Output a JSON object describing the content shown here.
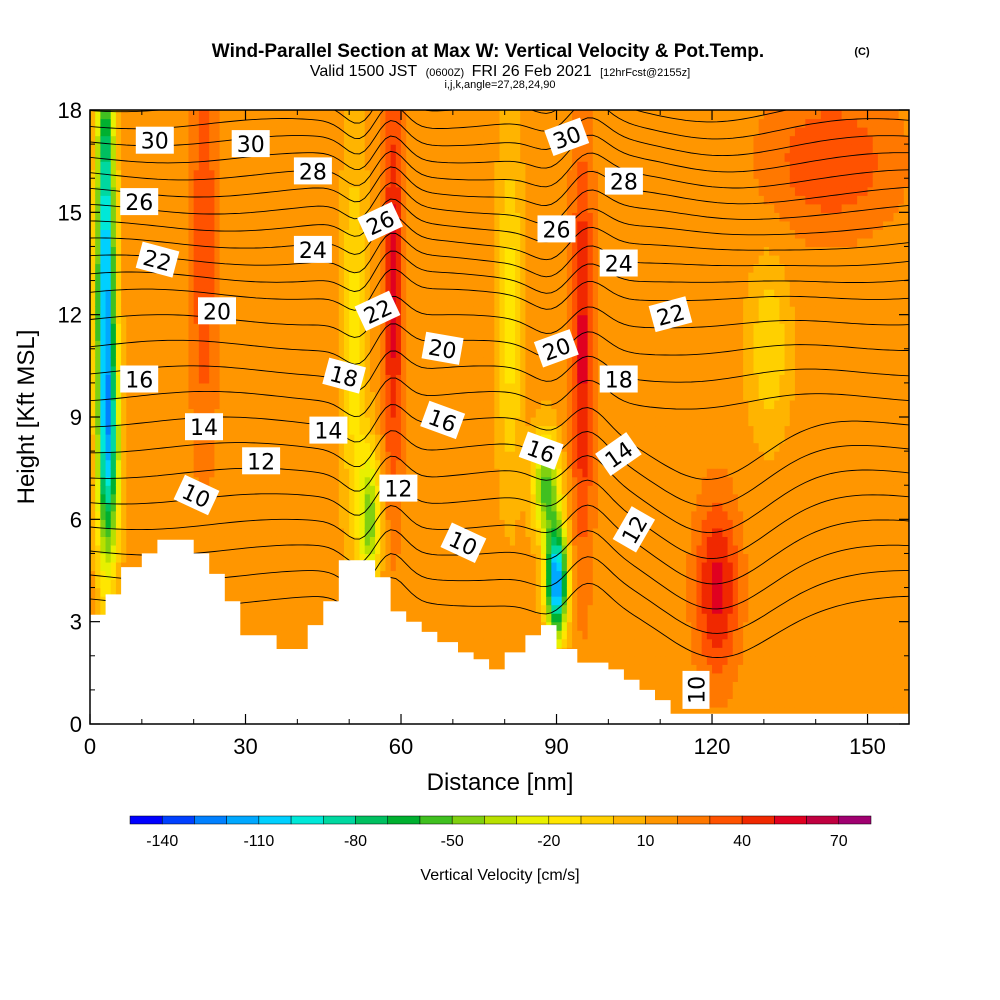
{
  "header": {
    "title": "Wind-Parallel Section at Max W: Vertical Velocity & Pot.Temp.",
    "title_mark": "(C)",
    "valid_prefix": "Valid 1500 JST",
    "valid_utc": "(0600Z)",
    "valid_date": "FRI 26 Feb 2021",
    "valid_fcst": "[12hrFcst@2155z]",
    "indices": "i,j,k,angle=27,28,24,90"
  },
  "chart_data": {
    "type": "heatmap",
    "xlabel": "Distance [nm]",
    "ylabel": "Height [Kft MSL]",
    "xlim": [
      0,
      158
    ],
    "ylim": [
      0,
      18
    ],
    "x_ticks": [
      "0",
      "30",
      "60",
      "90",
      "120",
      "150"
    ],
    "x_tick_values": [
      0,
      30,
      60,
      90,
      120,
      150
    ],
    "y_ticks": [
      "0",
      "3",
      "6",
      "9",
      "12",
      "15",
      "18"
    ],
    "y_tick_values": [
      0,
      3,
      6,
      9,
      12,
      15,
      18
    ],
    "terrain": {
      "x": [
        0,
        3,
        3,
        6,
        6,
        10,
        10,
        13,
        13,
        20,
        20,
        23,
        23,
        26,
        26,
        29,
        29,
        36,
        36,
        42,
        42,
        45,
        45,
        48,
        48,
        55,
        55,
        58,
        58,
        61,
        61,
        64,
        64,
        67,
        67,
        71,
        71,
        74,
        74,
        77,
        77,
        80,
        80,
        84,
        84,
        87,
        87,
        90,
        90,
        94,
        94,
        97,
        97,
        100,
        100,
        103,
        103,
        106,
        106,
        109,
        109,
        112,
        112,
        116,
        116,
        119,
        119,
        158
      ],
      "y": [
        3.2,
        3.2,
        3.8,
        3.8,
        4.6,
        4.6,
        5.0,
        5.0,
        5.4,
        5.4,
        5.0,
        5.0,
        4.4,
        4.4,
        3.6,
        3.6,
        2.6,
        2.6,
        2.2,
        2.2,
        2.9,
        2.9,
        3.6,
        3.6,
        4.8,
        4.8,
        4.3,
        4.3,
        3.3,
        3.3,
        3.0,
        3.0,
        2.7,
        2.7,
        2.4,
        2.4,
        2.1,
        2.1,
        1.9,
        1.9,
        1.6,
        1.6,
        2.1,
        2.1,
        2.6,
        2.6,
        2.9,
        2.9,
        2.2,
        2.2,
        1.8,
        1.8,
        1.8,
        1.8,
        1.6,
        1.6,
        1.3,
        1.3,
        1.0,
        1.0,
        0.7,
        0.7,
        0.3,
        0.3,
        0.3,
        0.3,
        0.3,
        0.3
      ]
    },
    "w_background": 15,
    "w_features": [
      {
        "x": 3,
        "y": 13,
        "sx": 1.8,
        "sy": 7,
        "amp": -130
      },
      {
        "x": 4,
        "y": 8,
        "sx": 2.0,
        "sy": 3,
        "amp": -60
      },
      {
        "x": 22,
        "y": 14,
        "sx": 2.5,
        "sy": 6,
        "amp": 25
      },
      {
        "x": 51,
        "y": 11,
        "sx": 2.5,
        "sy": 6,
        "amp": -30
      },
      {
        "x": 54,
        "y": 6,
        "sx": 2.0,
        "sy": 2,
        "amp": -60
      },
      {
        "x": 58.5,
        "y": 13,
        "sx": 2.0,
        "sy": 6,
        "amp": 40
      },
      {
        "x": 81,
        "y": 12,
        "sx": 2.5,
        "sy": 5,
        "amp": -30
      },
      {
        "x": 90,
        "y": 4.2,
        "sx": 2.0,
        "sy": 1.6,
        "amp": -140
      },
      {
        "x": 88,
        "y": 7.0,
        "sx": 2.5,
        "sy": 1.5,
        "amp": -70
      },
      {
        "x": 95,
        "y": 11,
        "sx": 2.2,
        "sy": 6,
        "amp": 38
      },
      {
        "x": 121,
        "y": 4,
        "sx": 4,
        "sy": 2.5,
        "amp": 40
      },
      {
        "x": 131,
        "y": 11,
        "sx": 4,
        "sy": 2.5,
        "amp": -25
      },
      {
        "x": 143,
        "y": 16.5,
        "sx": 12,
        "sy": 2.0,
        "amp": 25
      }
    ],
    "theta_contours": {
      "min": 8,
      "max": 33,
      "step": 1,
      "labels": [
        {
          "text": "30",
          "x": 12.5,
          "y": 17.1,
          "angle": 0
        },
        {
          "text": "30",
          "x": 31,
          "y": 17.0,
          "angle": 0
        },
        {
          "text": "26",
          "x": 9.5,
          "y": 15.3,
          "angle": 0
        },
        {
          "text": "28",
          "x": 43,
          "y": 16.2,
          "angle": 0
        },
        {
          "text": "26",
          "x": 56,
          "y": 14.7,
          "angle": -25
        },
        {
          "text": "30",
          "x": 92,
          "y": 17.2,
          "angle": -20
        },
        {
          "text": "28",
          "x": 103,
          "y": 15.9,
          "angle": 0
        },
        {
          "text": "26",
          "x": 90,
          "y": 14.5,
          "angle": 0
        },
        {
          "text": "22",
          "x": 13,
          "y": 13.6,
          "angle": 15
        },
        {
          "text": "24",
          "x": 43,
          "y": 13.9,
          "angle": 0
        },
        {
          "text": "24",
          "x": 102,
          "y": 13.5,
          "angle": 0
        },
        {
          "text": "20",
          "x": 24.5,
          "y": 12.1,
          "angle": 0
        },
        {
          "text": "22",
          "x": 55.5,
          "y": 12.1,
          "angle": -25
        },
        {
          "text": "22",
          "x": 112,
          "y": 12.0,
          "angle": -15
        },
        {
          "text": "20",
          "x": 68,
          "y": 11.0,
          "angle": 10
        },
        {
          "text": "20",
          "x": 90,
          "y": 11.0,
          "angle": -20
        },
        {
          "text": "16",
          "x": 9.5,
          "y": 10.1,
          "angle": 0
        },
        {
          "text": "18",
          "x": 49,
          "y": 10.2,
          "angle": 15
        },
        {
          "text": "18",
          "x": 102,
          "y": 10.1,
          "angle": 0
        },
        {
          "text": "16",
          "x": 68,
          "y": 8.9,
          "angle": 20
        },
        {
          "text": "14",
          "x": 22,
          "y": 8.7,
          "angle": 0
        },
        {
          "text": "14",
          "x": 46,
          "y": 8.6,
          "angle": 0
        },
        {
          "text": "16",
          "x": 87,
          "y": 8.0,
          "angle": 20
        },
        {
          "text": "14",
          "x": 102,
          "y": 7.9,
          "angle": -35
        },
        {
          "text": "12",
          "x": 33,
          "y": 7.7,
          "angle": 0
        },
        {
          "text": "12",
          "x": 59.5,
          "y": 6.9,
          "angle": 0
        },
        {
          "text": "10",
          "x": 20.5,
          "y": 6.7,
          "angle": 25
        },
        {
          "text": "12",
          "x": 105,
          "y": 5.7,
          "angle": -60
        },
        {
          "text": "10",
          "x": 72,
          "y": 5.3,
          "angle": 25
        },
        {
          "text": "10",
          "x": 117,
          "y": 1.0,
          "angle": -90
        }
      ]
    },
    "colorbar": {
      "label": "Vertical Velocity [cm/s]",
      "tick_labels": [
        "-140",
        "-110",
        "-80",
        "-50",
        "-20",
        "10",
        "40",
        "70"
      ],
      "tick_values": [
        -140,
        -110,
        -80,
        -50,
        -20,
        10,
        40,
        70
      ],
      "bins": [
        -150,
        -140,
        -130,
        -120,
        -110,
        -100,
        -90,
        -80,
        -70,
        -60,
        -50,
        -40,
        -30,
        -20,
        -10,
        0,
        10,
        20,
        30,
        40,
        50,
        60,
        70,
        80
      ],
      "colors": [
        "#0000ff",
        "#0040ff",
        "#0080ff",
        "#00a8ff",
        "#00d0ff",
        "#00e8d8",
        "#00d8a0",
        "#00c060",
        "#00b030",
        "#40c020",
        "#80d010",
        "#b8e000",
        "#e8f000",
        "#ffe600",
        "#ffd000",
        "#ffb400",
        "#ff9600",
        "#ff7800",
        "#ff5200",
        "#f02800",
        "#e00020",
        "#c00040",
        "#a00070",
        "#600090"
      ]
    }
  }
}
